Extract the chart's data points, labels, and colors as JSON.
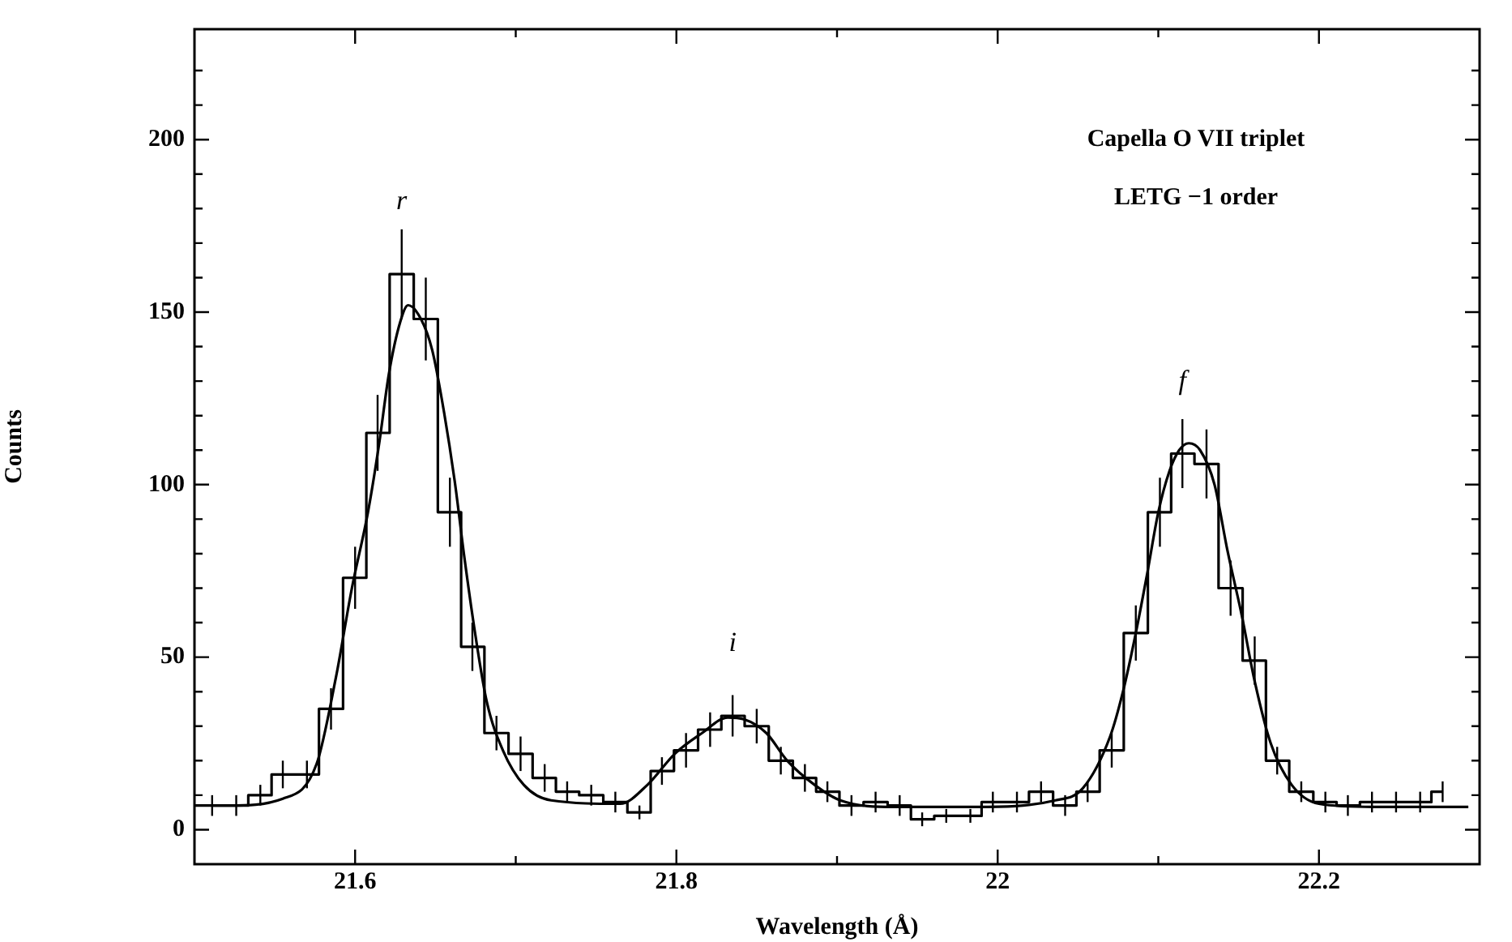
{
  "chart_data": {
    "type": "step",
    "xlabel": "Wavelength (Å)",
    "ylabel": "Counts",
    "xlim": [
      21.5,
      22.3
    ],
    "ylim": [
      -10,
      232
    ],
    "xticks": [
      21.6,
      {
        "value": 21.7,
        "label": null
      },
      21.8,
      {
        "value": 21.9,
        "label": null
      },
      22,
      {
        "value": 22.1,
        "label": null
      },
      22.2
    ],
    "yticks": [
      0,
      {
        "value": 10,
        "label": null
      },
      {
        "value": 20,
        "label": null
      },
      {
        "value": 30,
        "label": null
      },
      {
        "value": 40,
        "label": null
      },
      50,
      {
        "value": 60,
        "label": null
      },
      {
        "value": 70,
        "label": null
      },
      {
        "value": 80,
        "label": null
      },
      {
        "value": 90,
        "label": null
      },
      100,
      {
        "value": 110,
        "label": null
      },
      {
        "value": 120,
        "label": null
      },
      {
        "value": 130,
        "label": null
      },
      {
        "value": 140,
        "label": null
      },
      150,
      {
        "value": 160,
        "label": null
      },
      {
        "value": 170,
        "label": null
      },
      {
        "value": 180,
        "label": null
      },
      {
        "value": 190,
        "label": null
      },
      200,
      {
        "value": 210,
        "label": null
      },
      {
        "value": 220,
        "label": null
      }
    ],
    "grid": false,
    "legend": false,
    "marker": "none",
    "annotations": [
      "Capella O VII triplet",
      "LETG −1 order",
      {
        "text": "r",
        "x": 21.629,
        "y": 161
      },
      {
        "text": "i",
        "x": 21.835,
        "y": 33
      },
      {
        "text": "f",
        "x": 22.115,
        "y": 109
      }
    ],
    "series": [
      {
        "color": "#000000",
        "x": [
          21.511,
          21.526,
          21.541,
          21.555,
          21.57,
          21.585,
          21.6,
          21.614,
          21.629,
          21.644,
          21.659,
          21.673,
          21.688,
          21.703,
          21.718,
          21.732,
          21.747,
          21.762,
          21.777,
          21.791,
          21.806,
          21.821,
          21.835,
          21.85,
          21.865,
          21.88,
          21.894,
          21.909,
          21.924,
          21.939,
          21.953,
          21.968,
          21.983,
          21.997,
          22.012,
          22.027,
          22.042,
          22.056,
          22.071,
          22.086,
          22.101,
          22.115,
          22.13,
          22.145,
          22.16,
          22.174,
          22.189,
          22.204,
          22.218,
          22.233,
          22.248,
          22.263,
          22.277
        ],
        "values": [
          7,
          7,
          10,
          16,
          16,
          35,
          73,
          115,
          161,
          148,
          92,
          53,
          28,
          22,
          15,
          11,
          10,
          8,
          5,
          17,
          23,
          29,
          33,
          30,
          20,
          15,
          11,
          7,
          8,
          7,
          3,
          4,
          4,
          8,
          8,
          11,
          7,
          11,
          23,
          57,
          92,
          109,
          106,
          70,
          49,
          20,
          11,
          8,
          7,
          8,
          8,
          8,
          11
        ],
        "errors": [
          3,
          3,
          3,
          4,
          4,
          6,
          9,
          11,
          13,
          12,
          10,
          7,
          5,
          5,
          4,
          3,
          3,
          3,
          2,
          4,
          5,
          5,
          6,
          5,
          4,
          4,
          3,
          3,
          3,
          3,
          2,
          2,
          2,
          3,
          3,
          3,
          3,
          3,
          5,
          8,
          10,
          10,
          10,
          8,
          7,
          4,
          3,
          3,
          3,
          3,
          3,
          3,
          3
        ]
      },
      {
        "type": "line",
        "color": "#000000",
        "x": [
          21.5,
          21.521,
          21.555,
          21.576,
          21.588,
          21.598,
          21.608,
          21.615,
          21.621,
          21.628,
          21.633,
          21.641,
          21.648,
          21.655,
          21.662,
          21.668,
          21.675,
          21.682,
          21.692,
          21.705,
          21.722,
          21.765,
          21.782,
          21.799,
          21.816,
          21.832,
          21.842,
          21.856,
          21.869,
          21.886,
          21.902,
          21.936,
          21.986,
          22.036,
          22.053,
          22.07,
          22.078,
          22.086,
          22.093,
          22.1,
          22.107,
          22.113,
          22.119,
          22.126,
          22.135,
          22.143,
          22.152,
          22.16,
          22.17,
          22.183,
          22.2,
          22.234,
          22.293
        ],
        "values": [
          7,
          7,
          9,
          19,
          44,
          70,
          92,
          112,
          132,
          147,
          152,
          148,
          139,
          122,
          101,
          79,
          56,
          37,
          23,
          13,
          8.5,
          7.5,
          13,
          22,
          28,
          32.5,
          32,
          28,
          20,
          13,
          8.5,
          6.6,
          6.6,
          8.5,
          12,
          27,
          40,
          57,
          74,
          92,
          104,
          110,
          112,
          110,
          100,
          81,
          62,
          43,
          25,
          13,
          7.5,
          6.6,
          6.6
        ]
      }
    ]
  }
}
